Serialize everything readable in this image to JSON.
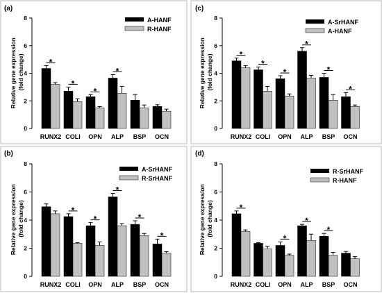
{
  "chart_data": [
    {
      "type": "bar",
      "panel_label": "(a)",
      "ylabel_lines": [
        "Relative gene expression",
        "(fold change)"
      ],
      "ylim": [
        0,
        8
      ],
      "yticks": [
        0,
        2,
        4,
        6,
        8
      ],
      "categories": [
        "RUNX2",
        "COLI",
        "OPN",
        "ALP",
        "BSP",
        "OCN"
      ],
      "series": [
        {
          "name": "A-HANF",
          "color": "#000000",
          "values": [
            4.35,
            2.7,
            2.3,
            3.65,
            2.05,
            1.6
          ],
          "errors": [
            0.2,
            0.3,
            0.15,
            0.25,
            0.4,
            0.12
          ]
        },
        {
          "name": "R-HANF",
          "color": "#c0c0c0",
          "values": [
            3.2,
            1.95,
            1.5,
            2.55,
            1.5,
            1.25
          ],
          "errors": [
            0.12,
            0.2,
            0.08,
            0.5,
            0.2,
            0.15
          ]
        }
      ],
      "significant": [
        true,
        true,
        true,
        true,
        false,
        false
      ],
      "legend_position": "top-right"
    },
    {
      "type": "bar",
      "panel_label": "(b)",
      "ylabel_lines": [
        "Relative gene expression",
        "(fold change)"
      ],
      "ylim": [
        0,
        8
      ],
      "yticks": [
        0,
        2,
        4,
        6,
        8
      ],
      "categories": [
        "RUNX2",
        "COLI",
        "OPN",
        "ALP",
        "BSP",
        "OCN"
      ],
      "series": [
        {
          "name": "A-SrHANF",
          "color": "#000000",
          "values": [
            4.95,
            4.25,
            3.6,
            5.65,
            3.7,
            2.3
          ],
          "errors": [
            0.2,
            0.2,
            0.22,
            0.25,
            0.25,
            0.35
          ]
        },
        {
          "name": "R-SrHANF",
          "color": "#c0c0c0",
          "values": [
            4.45,
            2.35,
            2.2,
            3.6,
            2.9,
            1.65
          ],
          "errors": [
            0.2,
            0.05,
            0.25,
            0.15,
            0.15,
            0.1
          ]
        }
      ],
      "significant": [
        false,
        true,
        true,
        true,
        true,
        true
      ],
      "legend_position": "top-right"
    },
    {
      "type": "bar",
      "panel_label": "(c)",
      "ylabel_lines": [
        "Relative gene expression",
        "(fold change)"
      ],
      "ylim": [
        0,
        8
      ],
      "yticks": [
        0,
        2,
        4,
        6,
        8
      ],
      "categories": [
        "RUNX2",
        "COLI",
        "OPN",
        "ALP",
        "BSP",
        "OCN"
      ],
      "series": [
        {
          "name": "A-SrHANF",
          "color": "#000000",
          "values": [
            4.9,
            4.25,
            3.6,
            5.6,
            3.7,
            2.3
          ],
          "errors": [
            0.2,
            0.2,
            0.22,
            0.25,
            0.3,
            0.3
          ]
        },
        {
          "name": "A-HANF",
          "color": "#c0c0c0",
          "values": [
            4.4,
            2.7,
            2.35,
            3.65,
            2.05,
            1.6
          ],
          "errors": [
            0.15,
            0.35,
            0.15,
            0.2,
            0.4,
            0.1
          ]
        }
      ],
      "significant": [
        true,
        true,
        true,
        true,
        true,
        true
      ],
      "legend_position": "top-right"
    },
    {
      "type": "bar",
      "panel_label": "(d)",
      "ylabel_lines": [
        "Relative gene expression",
        "(fold change)"
      ],
      "ylim": [
        0,
        8
      ],
      "yticks": [
        0,
        2,
        4,
        6,
        8
      ],
      "categories": [
        "RUNX2",
        "COLI",
        "OPN",
        "ALP",
        "BSP",
        "OCN"
      ],
      "series": [
        {
          "name": "R-SrHANF",
          "color": "#000000",
          "values": [
            4.45,
            2.35,
            2.2,
            3.6,
            2.85,
            1.65
          ],
          "errors": [
            0.2,
            0.05,
            0.25,
            0.1,
            0.2,
            0.12
          ]
        },
        {
          "name": "R-HANF",
          "color": "#c0c0c0",
          "values": [
            3.2,
            1.95,
            1.5,
            2.55,
            1.5,
            1.25
          ],
          "errors": [
            0.1,
            0.2,
            0.08,
            0.45,
            0.2,
            0.15
          ]
        }
      ],
      "significant": [
        true,
        false,
        true,
        true,
        true,
        false
      ],
      "legend_position": "top-right"
    }
  ]
}
